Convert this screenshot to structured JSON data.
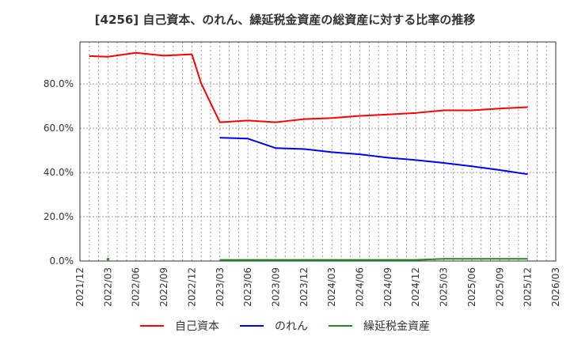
{
  "title": "[4256]  自己資本、のれん、繰延税金資産の総資産に対する比率の推移",
  "chart_data": {
    "type": "line",
    "title": "[4256]  自己資本、のれん、繰延税金資産の総資産に対する比率の推移",
    "xlabel": "",
    "ylabel": "",
    "ylim": [
      0,
      99
    ],
    "grid": true,
    "legend_position": "bottom",
    "y_ticks": [
      "0.0%",
      "20.0%",
      "40.0%",
      "60.0%",
      "80.0%"
    ],
    "y_tick_values": [
      0,
      20,
      40,
      60,
      80
    ],
    "x_ticks": [
      "2021/12",
      "2022/03",
      "2022/06",
      "2022/09",
      "2022/12",
      "2023/03",
      "2023/06",
      "2023/09",
      "2023/12",
      "2024/03",
      "2024/06",
      "2024/09",
      "2024/12",
      "2025/03",
      "2025/06",
      "2025/09",
      "2025/12",
      "2026/03"
    ],
    "x": [
      "2022/01",
      "2022/03",
      "2022/06",
      "2022/09",
      "2022/12",
      "2023/01",
      "2023/02",
      "2023/03",
      "2023/06",
      "2023/09",
      "2023/12",
      "2024/03",
      "2024/06",
      "2024/09",
      "2024/12",
      "2025/03",
      "2025/06",
      "2025/09",
      "2025/12"
    ],
    "series": [
      {
        "name": "自己資本",
        "color": "#ff0000",
        "values": [
          92.6,
          92.3,
          94.1,
          92.8,
          93.4,
          80.2,
          71.4,
          62.7,
          63.5,
          62.7,
          64.1,
          64.6,
          65.6,
          66.2,
          66.9,
          68.1,
          68.1,
          68.9,
          69.5
        ]
      },
      {
        "name": "のれん",
        "color": "#0000ff",
        "values": [
          null,
          null,
          null,
          null,
          null,
          null,
          null,
          55.7,
          55.3,
          51.0,
          50.6,
          49.2,
          48.2,
          46.7,
          45.6,
          44.3,
          42.8,
          41.1,
          39.2
        ]
      },
      {
        "name": "繰延税金資産",
        "color": "#228b22",
        "values": [
          null,
          0.3,
          null,
          null,
          null,
          null,
          null,
          0.5,
          0.5,
          0.5,
          0.5,
          0.5,
          0.5,
          0.5,
          0.5,
          1.0,
          1.0,
          1.0,
          1.0
        ]
      }
    ]
  },
  "legend": [
    {
      "label": "自己資本",
      "color": "#ff0000"
    },
    {
      "label": "のれん",
      "color": "#0000ff"
    },
    {
      "label": "繰延税金資産",
      "color": "#228b22"
    }
  ]
}
